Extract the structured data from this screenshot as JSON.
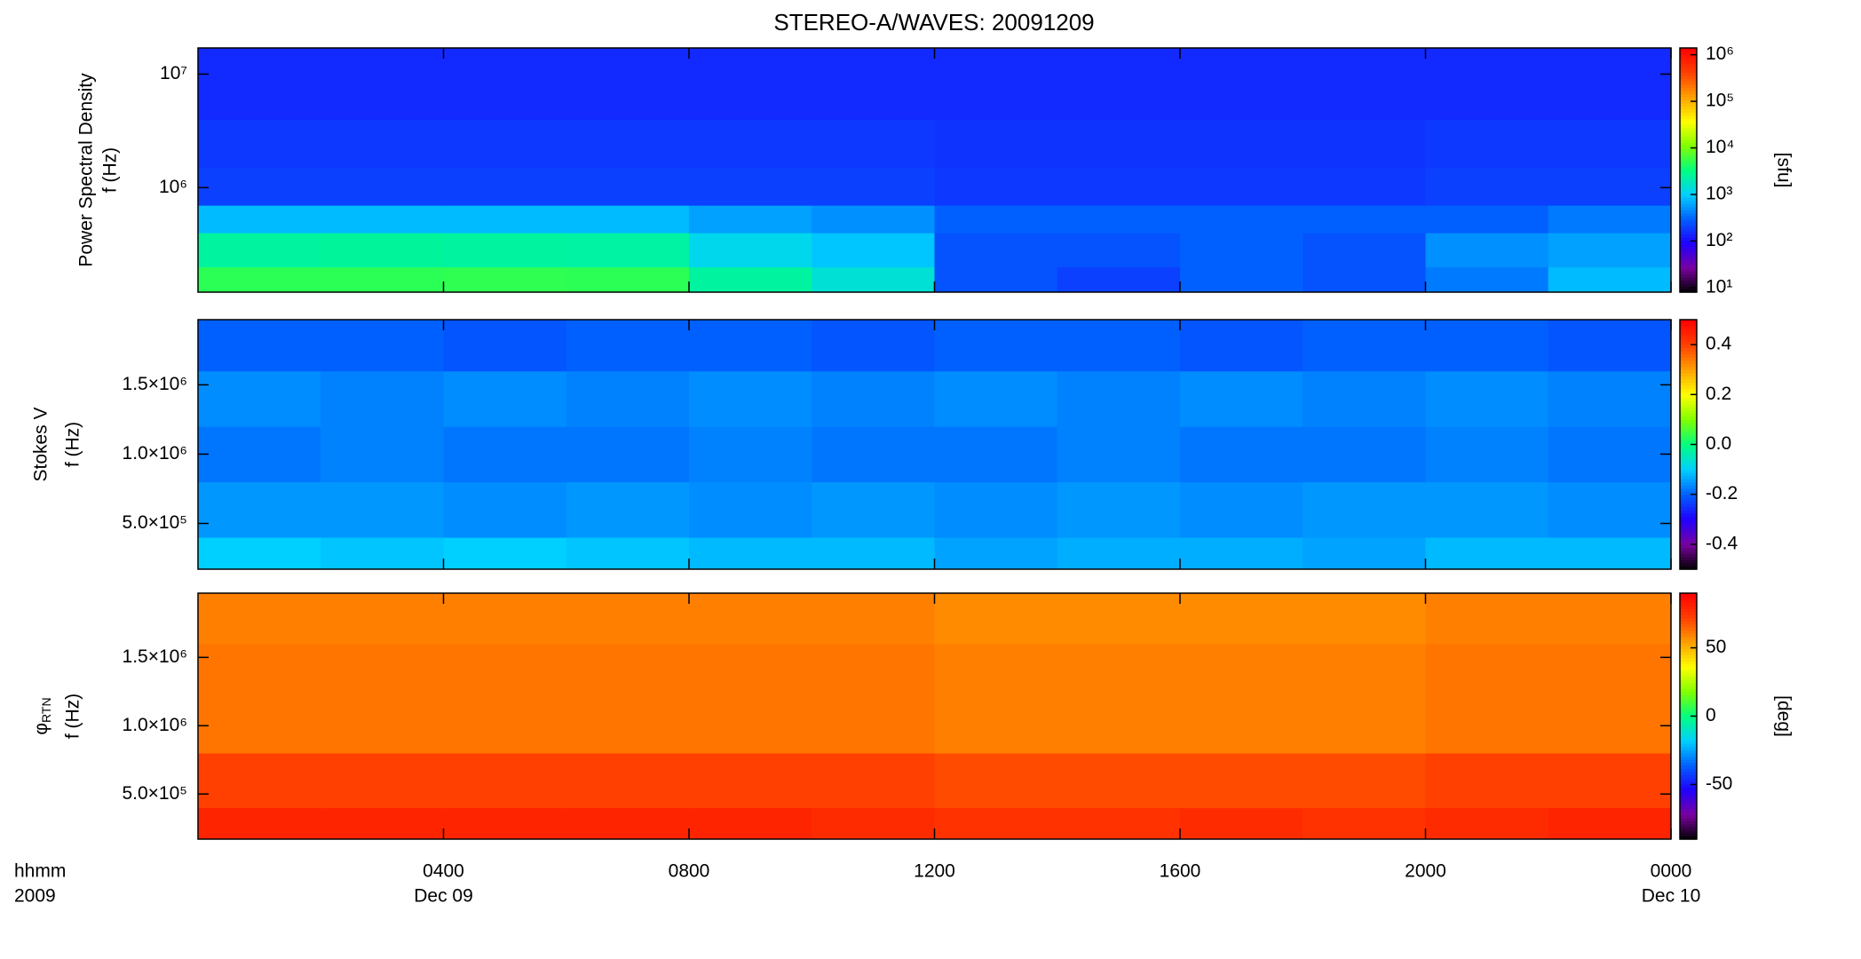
{
  "title": "STEREO-A/WAVES: 20091209",
  "colormap": [
    "#000000",
    "#7a00a0",
    "#2000ff",
    "#0060ff",
    "#00d0ff",
    "#00ff80",
    "#80ff00",
    "#ffff00",
    "#ffa000",
    "#ff4000",
    "#ff0000"
  ],
  "chart_data": [
    {
      "type": "heatmap",
      "ylabel": "Power Spectral Density",
      "ylabel2": "f (Hz)",
      "ylog": true,
      "xlim": [
        0,
        24
      ],
      "ylim": [
        120000,
        17000000
      ],
      "yticks": [
        {
          "value": 1000000,
          "label": "10⁶"
        },
        {
          "value": 10000000,
          "label": "10⁷"
        }
      ],
      "x_bins": [
        0,
        2,
        4,
        6,
        8,
        10,
        12,
        14,
        16,
        18,
        20,
        22,
        24
      ],
      "y_bins": [
        120000,
        200000,
        400000,
        700000,
        1500000,
        4000000,
        17000000
      ],
      "values": [
        [
          5000,
          5000,
          5200,
          5000,
          2500,
          1500,
          250,
          200,
          300,
          250,
          400,
          800
        ],
        [
          2500,
          2600,
          2500,
          2400,
          1200,
          900,
          250,
          250,
          300,
          250,
          500,
          600
        ],
        [
          800,
          800,
          800,
          800,
          600,
          500,
          300,
          300,
          300,
          300,
          300,
          400
        ],
        [
          200,
          200,
          200,
          200,
          200,
          200,
          180,
          180,
          180,
          180,
          200,
          200
        ],
        [
          180,
          180,
          180,
          180,
          180,
          180,
          170,
          170,
          170,
          170,
          180,
          180
        ],
        [
          150,
          150,
          150,
          150,
          150,
          150,
          150,
          150,
          150,
          150,
          150,
          150
        ]
      ],
      "colorbar": {
        "label": "[sfu]",
        "log": true,
        "lim": [
          8,
          1400000
        ],
        "ticks": [
          {
            "value": 10,
            "label": "10¹"
          },
          {
            "value": 100,
            "label": "10²"
          },
          {
            "value": 1000,
            "label": "10³"
          },
          {
            "value": 10000,
            "label": "10⁴"
          },
          {
            "value": 100000,
            "label": "10⁵"
          },
          {
            "value": 1000000,
            "label": "10⁶"
          }
        ]
      }
    },
    {
      "type": "heatmap",
      "ylabel": "Stokes V",
      "ylabel2": "f (Hz)",
      "ylog": false,
      "xlim": [
        0,
        24
      ],
      "ylim": [
        170000,
        1970000
      ],
      "yticks": [
        {
          "value": 500000,
          "label": "5.0×10⁵"
        },
        {
          "value": 1000000,
          "label": "1.0×10⁶"
        },
        {
          "value": 1500000,
          "label": "1.5×10⁶"
        }
      ],
      "x_bins": [
        0,
        2,
        4,
        6,
        8,
        10,
        12,
        14,
        16,
        18,
        20,
        22,
        24
      ],
      "y_bins": [
        170000,
        400000,
        800000,
        1200000,
        1600000,
        1970000
      ],
      "values": [
        [
          -0.1,
          -0.11,
          -0.1,
          -0.11,
          -0.12,
          -0.12,
          -0.14,
          -0.13,
          -0.13,
          -0.14,
          -0.12,
          -0.12
        ],
        [
          -0.15,
          -0.15,
          -0.16,
          -0.15,
          -0.16,
          -0.15,
          -0.16,
          -0.15,
          -0.16,
          -0.15,
          -0.15,
          -0.16
        ],
        [
          -0.18,
          -0.17,
          -0.18,
          -0.18,
          -0.17,
          -0.18,
          -0.18,
          -0.17,
          -0.18,
          -0.18,
          -0.17,
          -0.18
        ],
        [
          -0.16,
          -0.17,
          -0.16,
          -0.17,
          -0.16,
          -0.17,
          -0.16,
          -0.17,
          -0.16,
          -0.17,
          -0.16,
          -0.17
        ],
        [
          -0.2,
          -0.2,
          -0.21,
          -0.2,
          -0.2,
          -0.21,
          -0.2,
          -0.2,
          -0.21,
          -0.2,
          -0.2,
          -0.21
        ]
      ],
      "colorbar": {
        "log": false,
        "lim": [
          -0.5,
          0.5
        ],
        "ticks": [
          -0.4,
          -0.2,
          {
            "value": 0,
            "label": "0.0"
          },
          0.2,
          0.4
        ]
      }
    },
    {
      "type": "heatmap",
      "ylabel": "φ",
      "ylabel_sub": "RTN",
      "ylabel2": "f (Hz)",
      "ylog": false,
      "xlim": [
        0,
        24
      ],
      "ylim": [
        170000,
        1970000
      ],
      "yticks": [
        {
          "value": 500000,
          "label": "5.0×10⁵"
        },
        {
          "value": 1000000,
          "label": "1.0×10⁶"
        },
        {
          "value": 1500000,
          "label": "1.5×10⁶"
        }
      ],
      "xticks": [
        {
          "value": 4,
          "label": "0400"
        },
        {
          "value": 8,
          "label": "0800"
        },
        {
          "value": 12,
          "label": "1200"
        },
        {
          "value": 16,
          "label": "1600"
        },
        {
          "value": 20,
          "label": "2000"
        },
        {
          "value": 24,
          "label": "0000"
        }
      ],
      "x_unit_label": "hhmm",
      "x_year_label": "2009",
      "date_labels": [
        {
          "value": 4,
          "label": "Dec 09"
        },
        {
          "value": 24,
          "label": "Dec 10"
        }
      ],
      "x_bins": [
        0,
        2,
        4,
        6,
        8,
        10,
        12,
        14,
        16,
        18,
        20,
        22,
        24
      ],
      "y_bins": [
        170000,
        400000,
        800000,
        1200000,
        1600000,
        1970000
      ],
      "values": [
        [
          80,
          80,
          80,
          80,
          80,
          78,
          76,
          76,
          78,
          76,
          78,
          80
        ],
        [
          72,
          72,
          72,
          72,
          72,
          72,
          70,
          70,
          70,
          70,
          72,
          72
        ],
        [
          62,
          62,
          62,
          62,
          62,
          62,
          60,
          60,
          60,
          60,
          62,
          62
        ],
        [
          62,
          62,
          62,
          62,
          62,
          62,
          60,
          60,
          60,
          60,
          62,
          62
        ],
        [
          60,
          60,
          60,
          60,
          60,
          60,
          58,
          58,
          58,
          58,
          60,
          60
        ]
      ],
      "colorbar": {
        "label": "[deg]",
        "log": false,
        "lim": [
          -90,
          90
        ],
        "ticks": [
          -50,
          0,
          50
        ]
      }
    }
  ]
}
